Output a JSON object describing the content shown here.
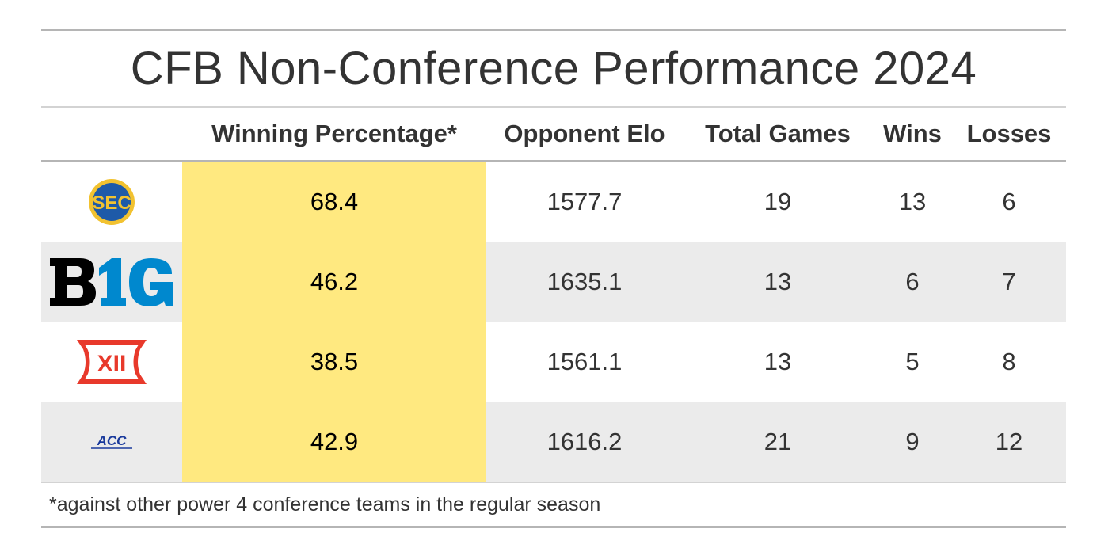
{
  "chart_data": {
    "type": "table",
    "title": "CFB Non-Conference Performance 2024",
    "columns": [
      "Winning Percentage*",
      "Opponent Elo",
      "Total Games",
      "Wins",
      "Losses"
    ],
    "rows": [
      {
        "conference": "SEC",
        "logo_text": "SEC",
        "winning_pct": "68.4",
        "opponent_elo": "1577.7",
        "total_games": "19",
        "wins": "13",
        "losses": "6"
      },
      {
        "conference": "Big Ten",
        "logo_text": "B1G",
        "winning_pct": "46.2",
        "opponent_elo": "1635.1",
        "total_games": "13",
        "wins": "6",
        "losses": "7"
      },
      {
        "conference": "Big 12",
        "logo_text": "XII",
        "winning_pct": "38.5",
        "opponent_elo": "1561.1",
        "total_games": "13",
        "wins": "5",
        "losses": "8"
      },
      {
        "conference": "ACC",
        "logo_text": "ACC",
        "winning_pct": "42.9",
        "opponent_elo": "1616.2",
        "total_games": "21",
        "wins": "9",
        "losses": "12"
      }
    ],
    "highlight_column": "Winning Percentage*",
    "highlight_color": "#ffe980",
    "footnote": "*against other power 4 conference teams in the regular season"
  },
  "colors": {
    "sec_blue": "#1e5aa8",
    "sec_gold": "#f2c230",
    "b1g_black": "#000000",
    "b1g_blue": "#0088ce",
    "big12_red": "#e8392b",
    "acc_blue": "#1a3a9c",
    "stripe": "#ebebeb"
  }
}
